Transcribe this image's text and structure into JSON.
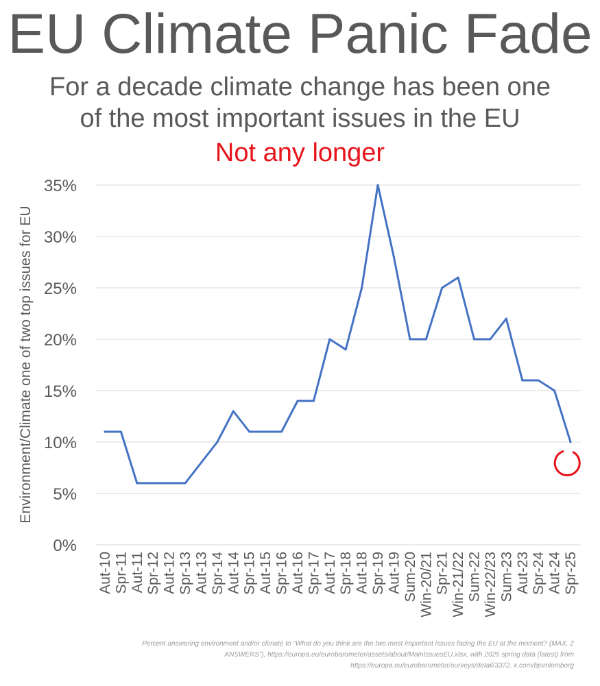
{
  "title": "EU Climate Panic Fade",
  "subtitle_line1": "For a decade climate change has been one",
  "subtitle_line2": "of the most important issues in the EU",
  "highlight": "Not any longer",
  "colors": {
    "text": "#595959",
    "accent": "#e8141b",
    "line": "#4472c4",
    "grid": "#d9d9d9",
    "source": "#9a9a9a"
  },
  "chart_data": {
    "type": "line",
    "ylabel": "Environment/Climate one of two top issues for EU",
    "xlabel": "",
    "ylim": [
      0,
      35
    ],
    "yticks": [
      0,
      5,
      10,
      15,
      20,
      25,
      30,
      35
    ],
    "ytick_labels": [
      "0%",
      "5%",
      "10%",
      "15%",
      "20%",
      "25%",
      "30%",
      "35%"
    ],
    "grid": true,
    "categories": [
      "Aut-10",
      "Spr-11",
      "Aut-11",
      "Spr-12",
      "Aut-12",
      "Spr-13",
      "Aut-13",
      "Spr-14",
      "Aut-14",
      "Spr-15",
      "Aut-15",
      "Spr-16",
      "Aut-16",
      "Spr-17",
      "Aut-17",
      "Spr-18",
      "Aut-18",
      "Spr-19",
      "Aut-19",
      "Sum-20",
      "Win-20/21",
      "Spr-21",
      "Win-21/22",
      "Sum-22",
      "Win-22/23",
      "Sum-23",
      "Aut-23",
      "Spr-24",
      "Aut-24",
      "Spr-25"
    ],
    "values": [
      11,
      11,
      6,
      6,
      6,
      6,
      8,
      10,
      13,
      11,
      11,
      11,
      14,
      14,
      20,
      19,
      25,
      35,
      28,
      20,
      20,
      25,
      26,
      20,
      20,
      22,
      16,
      16,
      15,
      10
    ],
    "annotation": "circle-on-last-point"
  },
  "source_line1": "Percent answering environment and/or climate to “What do you think are the two most important issues facing the EU at the moment? (MAX. 2",
  "source_line2": "ANSWERS”), https://europa.eu/eurobarometer/assets/about/MainIssuesEU.xlsx, with 2025 spring data (latest) from",
  "source_line3": "https://europa.eu/eurobarometer/surveys/detail/3372. x.com/bjornlomborg"
}
